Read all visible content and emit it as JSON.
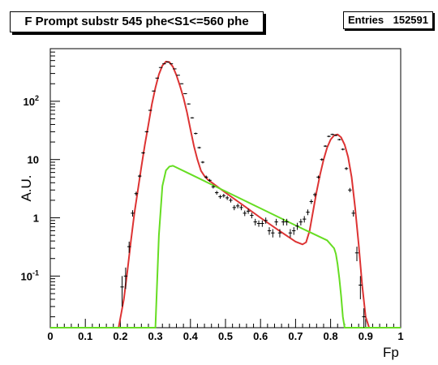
{
  "chart_data": {
    "type": "scatter",
    "title": "F Prompt substr 545 phe<S1<=560 phe",
    "stats": {
      "label": "Entries",
      "value": "152591"
    },
    "xlabel": "Fp",
    "ylabel": "A.U.",
    "xlim": [
      0,
      1
    ],
    "ylim": [
      0.013,
      800
    ],
    "yscale": "log",
    "x_ticks": [
      "0",
      "0.1",
      "0.2",
      "0.3",
      "0.4",
      "0.5",
      "0.6",
      "0.7",
      "0.8",
      "0.9",
      "1"
    ],
    "y_ticks": [
      {
        "value": 0.1,
        "base": "10",
        "exp": "-1"
      },
      {
        "value": 1,
        "base": "1",
        "exp": ""
      },
      {
        "value": 10,
        "base": "10",
        "exp": ""
      },
      {
        "value": 100,
        "base": "10",
        "exp": "2"
      }
    ],
    "grid": false,
    "series": [
      {
        "kind": "points",
        "color": "#000000",
        "x": [
          0.205,
          0.215,
          0.225,
          0.235,
          0.245,
          0.255,
          0.265,
          0.275,
          0.285,
          0.295,
          0.305,
          0.315,
          0.325,
          0.335,
          0.345,
          0.355,
          0.365,
          0.375,
          0.385,
          0.395,
          0.405,
          0.415,
          0.425,
          0.435,
          0.445,
          0.455,
          0.465,
          0.475,
          0.485,
          0.495,
          0.505,
          0.515,
          0.525,
          0.535,
          0.545,
          0.555,
          0.565,
          0.575,
          0.585,
          0.595,
          0.605,
          0.615,
          0.625,
          0.635,
          0.645,
          0.655,
          0.665,
          0.675,
          0.685,
          0.695,
          0.705,
          0.715,
          0.725,
          0.735,
          0.745,
          0.755,
          0.765,
          0.775,
          0.785,
          0.795,
          0.805,
          0.815,
          0.825,
          0.835,
          0.845,
          0.855,
          0.865,
          0.875,
          0.885,
          0.895
        ],
        "y": [
          0.065,
          0.1,
          0.32,
          1.2,
          2.6,
          5.2,
          13,
          30,
          70,
          150,
          250,
          380,
          440,
          470,
          440,
          360,
          280,
          200,
          135,
          90,
          52,
          28,
          16,
          9,
          5,
          4.4,
          3.4,
          2.7,
          2.3,
          2.4,
          2.2,
          2.0,
          1.5,
          1.6,
          1.5,
          1.2,
          1.3,
          1.1,
          0.85,
          0.8,
          0.8,
          0.9,
          0.6,
          0.55,
          0.85,
          0.55,
          0.85,
          0.85,
          0.55,
          0.6,
          0.72,
          0.85,
          0.95,
          1.25,
          1.9,
          2.5,
          5,
          10,
          17,
          25,
          27,
          26,
          22,
          15,
          7,
          3,
          1.2,
          0.25,
          0.07,
          0.02
        ],
        "err": [
          0.035,
          0.04,
          0.07,
          0.15,
          0.2,
          0.3,
          0.5,
          0.8,
          1.5,
          2.5,
          3,
          4,
          4,
          5,
          4,
          4,
          3,
          3,
          2.5,
          2,
          1.5,
          1,
          0.6,
          0.4,
          0.3,
          0.25,
          0.22,
          0.2,
          0.18,
          0.18,
          0.18,
          0.17,
          0.15,
          0.15,
          0.15,
          0.13,
          0.13,
          0.12,
          0.11,
          0.1,
          0.1,
          0.11,
          0.09,
          0.09,
          0.11,
          0.09,
          0.11,
          0.11,
          0.09,
          0.09,
          0.1,
          0.11,
          0.12,
          0.14,
          0.17,
          0.2,
          0.3,
          0.5,
          0.6,
          0.8,
          0.8,
          0.8,
          0.7,
          0.6,
          0.4,
          0.25,
          0.15,
          0.07,
          0.03,
          0.008
        ]
      },
      {
        "kind": "curve",
        "color": "#dd3333",
        "x": [
          0.195,
          0.21,
          0.22,
          0.23,
          0.24,
          0.25,
          0.26,
          0.27,
          0.28,
          0.29,
          0.3,
          0.31,
          0.32,
          0.33,
          0.34,
          0.35,
          0.36,
          0.37,
          0.38,
          0.39,
          0.4,
          0.41,
          0.42,
          0.43,
          0.44,
          0.45,
          0.5,
          0.55,
          0.6,
          0.65,
          0.7,
          0.72,
          0.73,
          0.74,
          0.75,
          0.76,
          0.77,
          0.78,
          0.79,
          0.8,
          0.81,
          0.82,
          0.83,
          0.84,
          0.85,
          0.86,
          0.87,
          0.88,
          0.89,
          0.9,
          0.91
        ],
        "y": [
          0.013,
          0.04,
          0.12,
          0.4,
          1.2,
          3,
          7.5,
          18,
          40,
          90,
          170,
          290,
          410,
          480,
          470,
          390,
          280,
          185,
          115,
          65,
          33,
          17,
          10,
          6.4,
          5.2,
          4.5,
          2.7,
          1.65,
          1.0,
          0.62,
          0.39,
          0.35,
          0.38,
          0.6,
          1.3,
          2.8,
          5.5,
          10,
          16,
          22,
          26,
          27,
          24,
          18,
          11,
          5,
          1.5,
          0.35,
          0.07,
          0.02,
          0.013
        ]
      },
      {
        "kind": "curve",
        "color": "#66dd22",
        "x": [
          0,
          0.3,
          0.31,
          0.32,
          0.33,
          0.34,
          0.35,
          0.4,
          0.5,
          0.6,
          0.7,
          0.79,
          0.81,
          0.815,
          0.82,
          0.825,
          0.83,
          0.835,
          0.84,
          1
        ],
        "y": [
          0.013,
          0.013,
          0.5,
          3.5,
          6.5,
          7.6,
          7.8,
          5.6,
          2.85,
          1.45,
          0.74,
          0.41,
          0.3,
          0.24,
          0.16,
          0.09,
          0.045,
          0.02,
          0.013,
          0.013
        ]
      }
    ]
  }
}
